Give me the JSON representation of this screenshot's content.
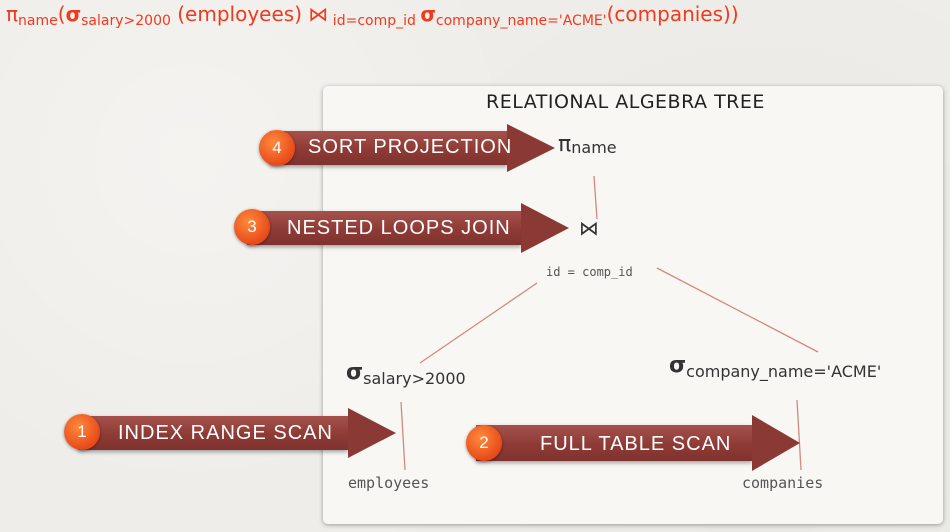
{
  "formula": {
    "pi": "π",
    "proj_attr": "name",
    "open": "(",
    "sigma1": "σ",
    "sel1": "salary>2000",
    "rel1": " (employees) ",
    "join": "⋈",
    "join_cond": " id=comp_id ",
    "sigma2": "σ",
    "sel2": "company_name='ACME'",
    "rel2": "(companies))"
  },
  "panel_title": "RELATIONAL ALGEBRA TREE",
  "tree": {
    "projection": {
      "symbol": "π",
      "attr": "name"
    },
    "join": {
      "symbol": "⋈",
      "condition": "id = comp_id"
    },
    "select_left": {
      "symbol": "σ",
      "predicate": "salary>2000"
    },
    "select_right": {
      "symbol": "σ",
      "predicate": "company_name='ACME'"
    },
    "leaf_left": "employees",
    "leaf_right": "companies"
  },
  "steps": [
    {
      "number": "4",
      "label": "SORT PROJECTION"
    },
    {
      "number": "3",
      "label": "NESTED LOOPS JOIN"
    },
    {
      "number": "1",
      "label": "INDEX RANGE SCAN"
    },
    {
      "number": "2",
      "label": "FULL TABLE SCAN"
    }
  ],
  "colors": {
    "formula": "#f03a1e",
    "arrow": "#8e3b36",
    "badge": "#e84a1a",
    "tree_edge": "#d08a80"
  }
}
